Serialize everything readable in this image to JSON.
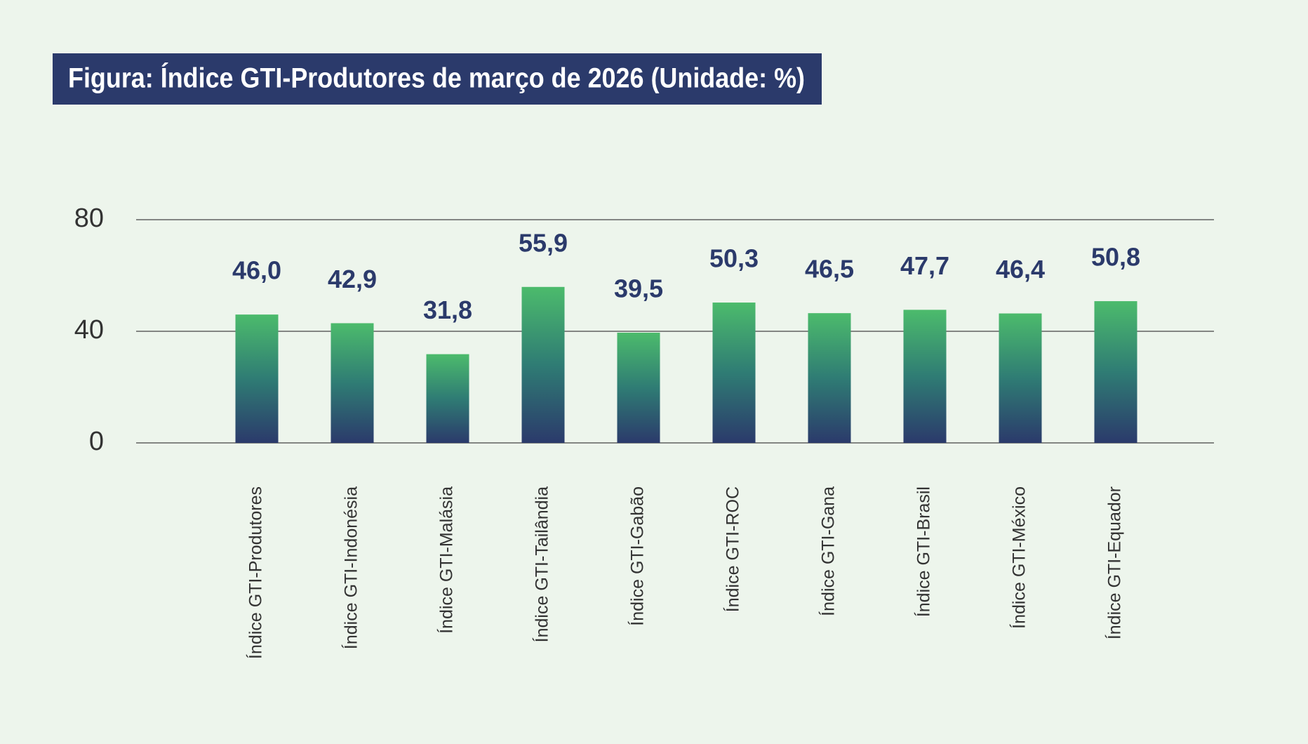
{
  "chart_data": {
    "type": "bar",
    "title": "Figura: Índice GTI-Produtores de março de 2026 (Unidade: %)",
    "categories": [
      "Índice GTI-Produtores",
      "Índice GTI-Indonésia",
      "Índice GTI-Malásia",
      "Índice GTI-Tailândia",
      "Índice GTI-Gabão",
      "Índice GTI-ROC",
      "Índice GTI-Gana",
      "Índice GTI-Brasil",
      "Índice GTI-México",
      "Índice GTI-Equador"
    ],
    "values": [
      46.0,
      42.9,
      31.8,
      55.9,
      39.5,
      50.3,
      46.5,
      47.7,
      46.4,
      50.8
    ],
    "value_labels": [
      "46,0",
      "42,9",
      "31,8",
      "55,9",
      "39,5",
      "50,3",
      "46,5",
      "47,7",
      "46,4",
      "50,8"
    ],
    "color": "#2b3a6b",
    "ylim": [
      0,
      80
    ],
    "yticks": [
      0,
      40,
      80
    ],
    "grid": true
  }
}
